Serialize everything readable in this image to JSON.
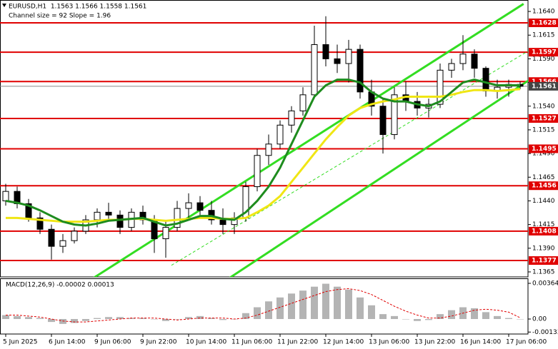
{
  "chart_data": {
    "type": "candlestick",
    "title": "EURUSD,H1  1.1563 1.1566 1.1558 1.1561",
    "subtitle": "Channel size = 92 Slope = 1.96",
    "categories": [
      "5 Jun 2025",
      null,
      null,
      null,
      "6 Jun 14:00",
      null,
      null,
      null,
      "9 Jun 06:00",
      null,
      null,
      null,
      "9 Jun 22:00",
      null,
      null,
      null,
      "10 Jun 14:00",
      null,
      null,
      null,
      "11 Jun 06:00",
      null,
      null,
      null,
      "11 Jun 22:00",
      null,
      null,
      null,
      "12 Jun 14:00",
      null,
      null,
      null,
      "13 Jun 06:00",
      null,
      null,
      null,
      "13 Jun 22:00",
      null,
      null,
      null,
      "16 Jun 14:00",
      null,
      null,
      null,
      "17 Jun 06:00",
      null
    ],
    "candles": [
      [
        1.144,
        1.1458,
        1.1435,
        1.145
      ],
      [
        1.145,
        1.1455,
        1.1432,
        1.1437
      ],
      [
        1.1437,
        1.1442,
        1.1418,
        1.1422
      ],
      [
        1.1422,
        1.1428,
        1.1405,
        1.141
      ],
      [
        1.141,
        1.1415,
        1.1378,
        1.1392
      ],
      [
        1.1392,
        1.1405,
        1.1385,
        1.1398
      ],
      [
        1.1398,
        1.1412,
        1.1395,
        1.1408
      ],
      [
        1.1408,
        1.1425,
        1.1405,
        1.142
      ],
      [
        1.142,
        1.1432,
        1.1412,
        1.1428
      ],
      [
        1.1428,
        1.1438,
        1.1418,
        1.1425
      ],
      [
        1.1425,
        1.143,
        1.1405,
        1.1412
      ],
      [
        1.1412,
        1.1432,
        1.1408,
        1.1428
      ],
      [
        1.1428,
        1.1435,
        1.1415,
        1.142
      ],
      [
        1.142,
        1.1425,
        1.1385,
        1.14
      ],
      [
        1.14,
        1.1418,
        1.138,
        1.1412
      ],
      [
        1.1412,
        1.144,
        1.1408,
        1.1432
      ],
      [
        1.1432,
        1.1448,
        1.142,
        1.1438
      ],
      [
        1.1438,
        1.1445,
        1.1425,
        1.143
      ],
      [
        1.143,
        1.144,
        1.1415,
        1.142
      ],
      [
        1.142,
        1.1432,
        1.1405,
        1.1415
      ],
      [
        1.1415,
        1.1428,
        1.1405,
        1.1422
      ],
      [
        1.1422,
        1.146,
        1.1418,
        1.1455
      ],
      [
        1.1455,
        1.1495,
        1.145,
        1.1488
      ],
      [
        1.1488,
        1.151,
        1.1478,
        1.15
      ],
      [
        1.15,
        1.1525,
        1.1495,
        1.152
      ],
      [
        1.152,
        1.154,
        1.1512,
        1.1535
      ],
      [
        1.1535,
        1.156,
        1.153,
        1.1552
      ],
      [
        1.1552,
        1.1625,
        1.1548,
        1.1605
      ],
      [
        1.1605,
        1.1635,
        1.1582,
        1.159
      ],
      [
        1.159,
        1.1605,
        1.1575,
        1.1585
      ],
      [
        1.1585,
        1.161,
        1.1565,
        1.16
      ],
      [
        1.16,
        1.1605,
        1.1548,
        1.1555
      ],
      [
        1.1555,
        1.1568,
        1.153,
        1.154
      ],
      [
        1.154,
        1.1548,
        1.149,
        1.151
      ],
      [
        1.151,
        1.156,
        1.1505,
        1.1552
      ],
      [
        1.1552,
        1.1566,
        1.1535,
        1.1545
      ],
      [
        1.1545,
        1.1555,
        1.153,
        1.1538
      ],
      [
        1.1538,
        1.1548,
        1.1528,
        1.1542
      ],
      [
        1.1542,
        1.1585,
        1.1538,
        1.1578
      ],
      [
        1.1578,
        1.159,
        1.157,
        1.1585
      ],
      [
        1.1585,
        1.1615,
        1.1578,
        1.1595
      ],
      [
        1.1595,
        1.16,
        1.157,
        1.158
      ],
      [
        1.158,
        1.1582,
        1.155,
        1.1556
      ],
      [
        1.1556,
        1.1568,
        1.1548,
        1.156
      ],
      [
        1.156,
        1.1568,
        1.155,
        1.1563
      ],
      [
        1.1563,
        1.1566,
        1.1558,
        1.1561
      ]
    ],
    "up_color": "#ffffff",
    "down_color": "#000000",
    "ylim": [
      1.13597,
      1.16521
    ],
    "yticks": [
      {
        "value": 1.164,
        "label": "1.1640"
      },
      1.1615,
      {
        "value": 1.159,
        "label": "1.1590"
      },
      1.1565,
      {
        "value": 1.154,
        "label": "1.1540"
      },
      1.1515,
      {
        "value": 1.149,
        "label": "1.1490"
      },
      1.1465,
      {
        "value": 1.144,
        "label": "1.1440"
      },
      1.1415,
      {
        "value": 1.139,
        "label": "1.1390"
      },
      1.1365
    ],
    "levels": [
      1.1628,
      1.1597,
      1.1566,
      1.1527,
      1.1495,
      1.1456,
      1.1408,
      1.1377
    ],
    "level_color": "#e00000",
    "last_price": 1.1561,
    "moving_averages": [
      {
        "color": "#f0e614",
        "values": [
          1.1422,
          1.1422,
          1.1421,
          1.142,
          1.1419,
          1.1418,
          1.1418,
          1.1418,
          1.1419,
          1.142,
          1.142,
          1.1421,
          1.1421,
          1.142,
          1.1419,
          1.142,
          1.1421,
          1.1422,
          1.1422,
          1.1421,
          1.1421,
          1.1422,
          1.1428,
          1.1435,
          1.1445,
          1.146,
          1.1475,
          1.149,
          1.1505,
          1.1518,
          1.153,
          1.1538,
          1.1542,
          1.1545,
          1.1547,
          1.155,
          1.155,
          1.155,
          1.155,
          1.1552,
          1.1555,
          1.1557,
          1.1557,
          1.1556,
          1.1557,
          1.1558
        ]
      },
      {
        "color": "#1e8c1e",
        "values": [
          1.144,
          1.1438,
          1.1435,
          1.143,
          1.1424,
          1.1418,
          1.1415,
          1.1414,
          1.1416,
          1.1419,
          1.142,
          1.1421,
          1.1422,
          1.1418,
          1.1414,
          1.1416,
          1.142,
          1.1424,
          1.1424,
          1.1421,
          1.142,
          1.1428,
          1.144,
          1.1455,
          1.1475,
          1.15,
          1.1525,
          1.155,
          1.1562,
          1.1568,
          1.1568,
          1.1565,
          1.1555,
          1.1548,
          1.1545,
          1.1545,
          1.1542,
          1.154,
          1.1545,
          1.1555,
          1.1565,
          1.1568,
          1.1565,
          1.1562,
          1.1562,
          1.1562
        ]
      }
    ],
    "channel_color": "#33dd22",
    "channel_lines": [
      {
        "x": [
          7.6,
          45.3
        ],
        "y": [
          1.1358,
          1.1648
        ],
        "style": "solid"
      },
      {
        "x": [
          19.5,
          47.6
        ],
        "y": [
          1.1358,
          1.1582
        ],
        "style": "solid"
      },
      {
        "x": [
          14.5,
          47.6
        ],
        "y": [
          1.1372,
          1.1612
        ],
        "style": "dashed"
      }
    ],
    "macd": {
      "label": "MACD(12,26,9) -0.00002 0.00013",
      "ylim": [
        -0.00153,
        0.00415
      ],
      "yticks": [
        0.00364,
        {
          "value": 0,
          "label": "0.00"
        },
        -0.00133
      ],
      "hist_color": "#b4b4b4",
      "signal_color": "#e00000",
      "histogram": [
        0.0004,
        0.0003,
        0.0002,
        0.0001,
        -0.0003,
        -0.0005,
        -0.0004,
        -0.0002,
        0.0001,
        0.0002,
        0.0002,
        0.0001,
        0.0001,
        0,
        -0.0002,
        0,
        0.0002,
        0.0003,
        0.0001,
        -0.0001,
        0,
        0.0006,
        0.0012,
        0.0018,
        0.0022,
        0.0026,
        0.0029,
        0.0033,
        0.0036,
        0.0033,
        0.003,
        0.0022,
        0.0014,
        0.0005,
        0.0003,
        0,
        -0.0002,
        -0.0001,
        0.0005,
        0.0009,
        0.0012,
        0.0011,
        0.0007,
        0.0003,
        0.0001,
        -2e-05
      ],
      "signal": [
        0.0004,
        0.0004,
        0.0003,
        0.0002,
        0,
        -0.0002,
        -0.0003,
        -0.0003,
        -0.0002,
        -0.0001,
        0,
        0.0001,
        0.0001,
        0.0001,
        0,
        -0.0001,
        0,
        0.0001,
        0.0001,
        0.0001,
        0,
        0.0001,
        0.0004,
        0.0008,
        0.0012,
        0.0016,
        0.002,
        0.0024,
        0.0028,
        0.003,
        0.0031,
        0.0029,
        0.0025,
        0.0019,
        0.0013,
        0.0008,
        0.0004,
        0.0001,
        0.0001,
        0.0003,
        0.0006,
        0.0009,
        0.001,
        0.0009,
        0.0007,
        0.00013
      ]
    }
  }
}
